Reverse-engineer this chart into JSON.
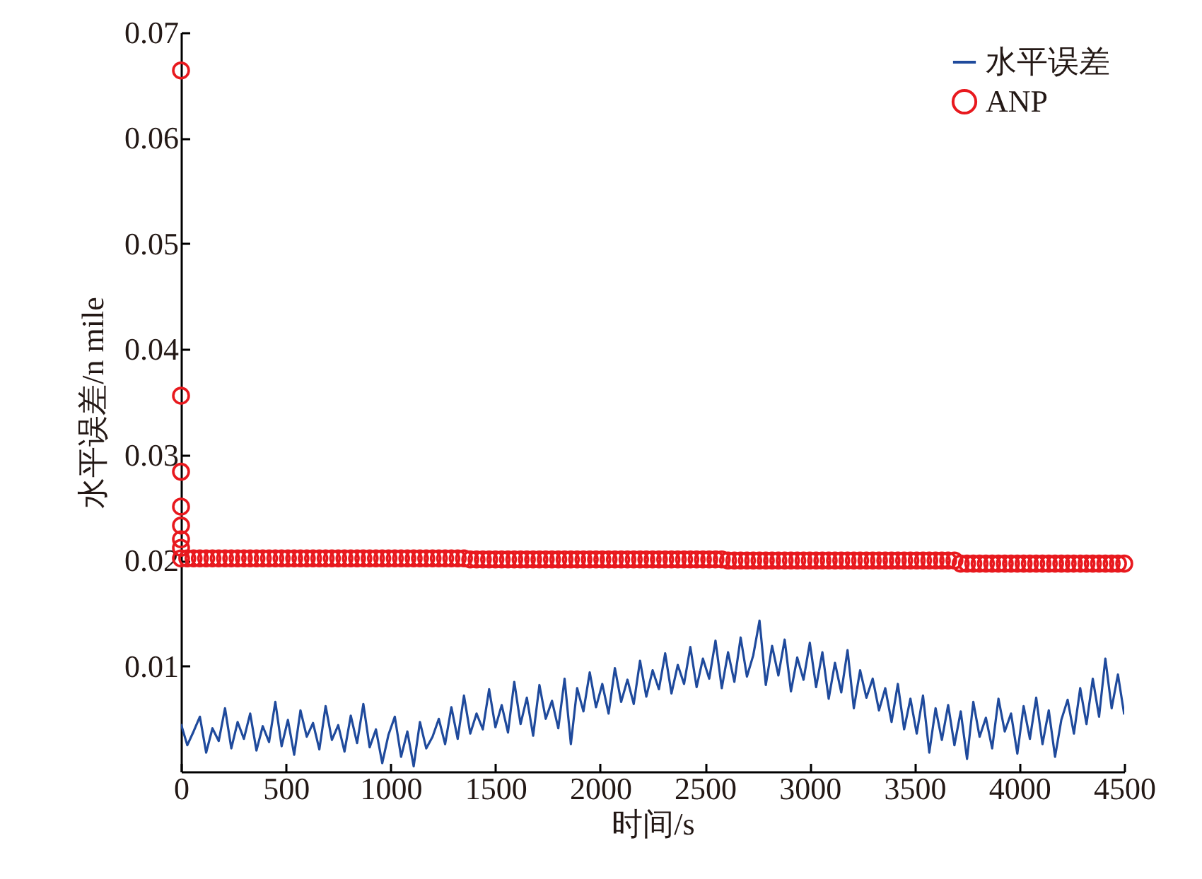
{
  "chart_data": {
    "type": "line",
    "xlabel": "时间/s",
    "ylabel": "水平误差/n mile",
    "x": [
      0,
      30,
      60,
      90,
      120,
      150,
      180,
      210,
      240,
      270,
      300,
      330,
      360,
      390,
      420,
      450,
      480,
      510,
      540,
      570,
      600,
      630,
      660,
      690,
      720,
      750,
      780,
      810,
      840,
      870,
      900,
      930,
      960,
      990,
      1020,
      1050,
      1080,
      1110,
      1140,
      1170,
      1200,
      1230,
      1260,
      1290,
      1320,
      1350,
      1380,
      1410,
      1440,
      1470,
      1500,
      1530,
      1560,
      1590,
      1620,
      1650,
      1680,
      1710,
      1740,
      1770,
      1800,
      1830,
      1860,
      1890,
      1920,
      1950,
      1980,
      2010,
      2040,
      2070,
      2100,
      2130,
      2160,
      2190,
      2220,
      2250,
      2280,
      2310,
      2340,
      2370,
      2400,
      2430,
      2460,
      2490,
      2520,
      2550,
      2580,
      2610,
      2640,
      2670,
      2700,
      2730,
      2760,
      2790,
      2820,
      2850,
      2880,
      2910,
      2940,
      2970,
      3000,
      3030,
      3060,
      3090,
      3120,
      3150,
      3180,
      3210,
      3240,
      3270,
      3300,
      3330,
      3360,
      3390,
      3420,
      3450,
      3480,
      3510,
      3540,
      3570,
      3600,
      3630,
      3660,
      3690,
      3720,
      3750,
      3780,
      3810,
      3840,
      3870,
      3900,
      3930,
      3960,
      3990,
      4020,
      4050,
      4080,
      4110,
      4140,
      4170,
      4200,
      4230,
      4260,
      4290,
      4320,
      4350,
      4380,
      4410,
      4440,
      4470,
      4500
    ],
    "series": [
      {
        "name": "水平误差",
        "color": "#1f4a9c",
        "values": [
          0.0045,
          0.0025,
          0.0038,
          0.0052,
          0.0018,
          0.0041,
          0.0029,
          0.006,
          0.0022,
          0.0047,
          0.0031,
          0.0055,
          0.002,
          0.0043,
          0.0028,
          0.0066,
          0.0024,
          0.0049,
          0.0016,
          0.0058,
          0.0033,
          0.0046,
          0.0021,
          0.0062,
          0.003,
          0.0044,
          0.0019,
          0.0053,
          0.0027,
          0.0064,
          0.0023,
          0.004,
          0.0008,
          0.0035,
          0.0052,
          0.0014,
          0.0038,
          0.0005,
          0.0047,
          0.0022,
          0.0033,
          0.005,
          0.0026,
          0.0061,
          0.0031,
          0.0072,
          0.0036,
          0.0055,
          0.004,
          0.0078,
          0.0042,
          0.0063,
          0.0037,
          0.0085,
          0.0045,
          0.007,
          0.0034,
          0.0082,
          0.005,
          0.0067,
          0.0041,
          0.0088,
          0.0026,
          0.0079,
          0.0057,
          0.0094,
          0.0061,
          0.0083,
          0.0055,
          0.0098,
          0.0066,
          0.0087,
          0.0064,
          0.0105,
          0.0071,
          0.0096,
          0.0078,
          0.0112,
          0.0074,
          0.0101,
          0.0083,
          0.0118,
          0.008,
          0.0107,
          0.0088,
          0.0124,
          0.0079,
          0.0113,
          0.0085,
          0.0127,
          0.009,
          0.011,
          0.0143,
          0.0082,
          0.0119,
          0.0091,
          0.0125,
          0.0076,
          0.0108,
          0.0087,
          0.0122,
          0.008,
          0.0113,
          0.0069,
          0.0103,
          0.0075,
          0.0115,
          0.006,
          0.0096,
          0.007,
          0.0088,
          0.0058,
          0.0079,
          0.0047,
          0.0083,
          0.004,
          0.0069,
          0.0036,
          0.0072,
          0.0018,
          0.006,
          0.003,
          0.0063,
          0.0025,
          0.0057,
          0.0012,
          0.0066,
          0.0033,
          0.0051,
          0.0022,
          0.0069,
          0.0038,
          0.0055,
          0.0017,
          0.0062,
          0.0031,
          0.007,
          0.0026,
          0.0058,
          0.0014,
          0.0049,
          0.0068,
          0.0036,
          0.0079,
          0.0045,
          0.0088,
          0.0052,
          0.0107,
          0.006,
          0.0092,
          0.0054
        ]
      },
      {
        "name": "ANP",
        "type": "scatter",
        "marker": "circle",
        "color": "#e8191e",
        "x": [
          0,
          0,
          0,
          0,
          0,
          0,
          0,
          0,
          30,
          60,
          90,
          120,
          150,
          180,
          210,
          240,
          270,
          300,
          330,
          360,
          390,
          420,
          450,
          480,
          510,
          540,
          570,
          600,
          630,
          660,
          690,
          720,
          750,
          780,
          810,
          840,
          870,
          900,
          930,
          960,
          990,
          1020,
          1050,
          1080,
          1110,
          1140,
          1170,
          1200,
          1230,
          1260,
          1290,
          1320,
          1350,
          1380,
          1410,
          1440,
          1470,
          1500,
          1530,
          1560,
          1590,
          1620,
          1650,
          1680,
          1710,
          1740,
          1770,
          1800,
          1830,
          1860,
          1890,
          1920,
          1950,
          1980,
          2010,
          2040,
          2070,
          2100,
          2130,
          2160,
          2190,
          2220,
          2250,
          2280,
          2310,
          2340,
          2370,
          2400,
          2430,
          2460,
          2490,
          2520,
          2550,
          2580,
          2610,
          2640,
          2670,
          2700,
          2730,
          2760,
          2790,
          2820,
          2850,
          2880,
          2910,
          2940,
          2970,
          3000,
          3030,
          3060,
          3090,
          3120,
          3150,
          3180,
          3210,
          3240,
          3270,
          3300,
          3330,
          3360,
          3390,
          3420,
          3450,
          3480,
          3510,
          3540,
          3570,
          3600,
          3630,
          3660,
          3690,
          3720,
          3750,
          3780,
          3810,
          3840,
          3870,
          3900,
          3930,
          3960,
          3990,
          4020,
          4050,
          4080,
          4110,
          4140,
          4170,
          4200,
          4230,
          4260,
          4290,
          4320,
          4350,
          4380,
          4410,
          4440,
          4470,
          4500
        ],
        "values": [
          0.0664,
          0.0356,
          0.0284,
          0.0251,
          0.0233,
          0.022,
          0.0212,
          0.0202,
          0.0202,
          0.0202,
          0.0202,
          0.0202,
          0.0202,
          0.0202,
          0.0202,
          0.0202,
          0.0202,
          0.0202,
          0.0202,
          0.0202,
          0.0202,
          0.0202,
          0.0202,
          0.0202,
          0.0202,
          0.0202,
          0.0202,
          0.0202,
          0.0202,
          0.0202,
          0.0202,
          0.0202,
          0.0202,
          0.0202,
          0.0202,
          0.0202,
          0.0202,
          0.0202,
          0.0202,
          0.0202,
          0.0202,
          0.0202,
          0.0202,
          0.0202,
          0.0202,
          0.0202,
          0.0202,
          0.0202,
          0.0202,
          0.0202,
          0.0202,
          0.0202,
          0.0202,
          0.0201,
          0.0201,
          0.0201,
          0.0201,
          0.0201,
          0.0201,
          0.0201,
          0.0201,
          0.0201,
          0.0201,
          0.0201,
          0.0201,
          0.0201,
          0.0201,
          0.0201,
          0.0201,
          0.0201,
          0.0201,
          0.0201,
          0.0201,
          0.0201,
          0.0201,
          0.0201,
          0.0201,
          0.0201,
          0.0201,
          0.0201,
          0.0201,
          0.0201,
          0.0201,
          0.0201,
          0.0201,
          0.0201,
          0.0201,
          0.0201,
          0.0201,
          0.0201,
          0.0201,
          0.0201,
          0.0201,
          0.0201,
          0.02,
          0.02,
          0.02,
          0.02,
          0.02,
          0.02,
          0.02,
          0.02,
          0.02,
          0.02,
          0.02,
          0.02,
          0.02,
          0.02,
          0.02,
          0.02,
          0.02,
          0.02,
          0.02,
          0.02,
          0.02,
          0.02,
          0.02,
          0.02,
          0.02,
          0.02,
          0.02,
          0.02,
          0.02,
          0.02,
          0.02,
          0.02,
          0.02,
          0.02,
          0.02,
          0.02,
          0.02,
          0.0197,
          0.0197,
          0.0197,
          0.0197,
          0.0197,
          0.0197,
          0.0197,
          0.0197,
          0.0197,
          0.0197,
          0.0197,
          0.0197,
          0.0197,
          0.0197,
          0.0197,
          0.0197,
          0.0197,
          0.0197,
          0.0197,
          0.0197,
          0.0197,
          0.0197,
          0.0197,
          0.0197,
          0.0197,
          0.0197,
          0.0197
        ]
      }
    ],
    "xlim": [
      0,
      4500
    ],
    "xticks": [
      0,
      500,
      1000,
      1500,
      2000,
      2500,
      3000,
      3500,
      4000,
      4500
    ],
    "ylim": [
      0,
      0.07
    ],
    "yticks": [
      0.01,
      0.02,
      0.03,
      0.04,
      0.05,
      0.06,
      0.07
    ],
    "grid": false,
    "legend": "top right"
  }
}
